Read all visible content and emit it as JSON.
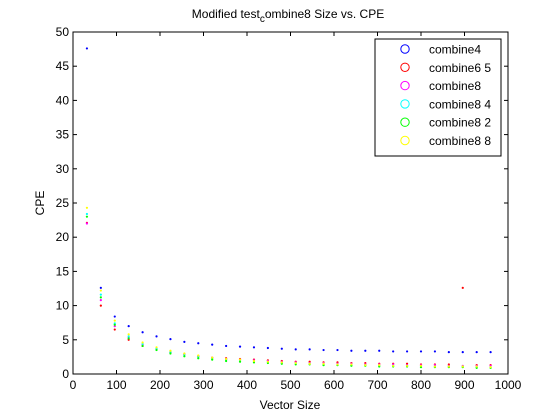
{
  "chart_data": {
    "type": "scatter",
    "title": {
      "prefix": "Modified test",
      "subscript": "c",
      "suffix": "ombine8 Size vs. CPE"
    },
    "xlabel": "Vector Size",
    "ylabel": "CPE",
    "xlim": [
      0,
      1000
    ],
    "ylim": [
      0,
      50
    ],
    "xticks": [
      "0",
      "100",
      "200",
      "300",
      "400",
      "500",
      "600",
      "700",
      "800",
      "900",
      "1000"
    ],
    "yticks": [
      "0",
      "5",
      "10",
      "15",
      "20",
      "25",
      "30",
      "35",
      "40",
      "45",
      "50"
    ],
    "grid": false,
    "legend_position": "top-right",
    "x": [
      32,
      64,
      96,
      128,
      160,
      192,
      224,
      256,
      288,
      320,
      352,
      384,
      416,
      448,
      480,
      512,
      544,
      576,
      608,
      640,
      672,
      704,
      736,
      768,
      800,
      832,
      864,
      896,
      928,
      960
    ],
    "series": [
      {
        "name": "combine4",
        "color": "#0000ff",
        "values": [
          47.6,
          12.6,
          8.4,
          7.0,
          6.1,
          5.5,
          5.1,
          4.7,
          4.5,
          4.3,
          4.1,
          4.0,
          3.9,
          3.8,
          3.7,
          3.6,
          3.6,
          3.5,
          3.5,
          3.4,
          3.4,
          3.4,
          3.3,
          3.3,
          3.3,
          3.3,
          3.2,
          3.2,
          3.2,
          3.2
        ]
      },
      {
        "name": "combine6 5",
        "color": "#ff0000",
        "values": [
          22.1,
          10.0,
          6.5,
          5.0,
          4.1,
          3.6,
          3.2,
          2.9,
          2.6,
          2.4,
          2.3,
          2.2,
          2.1,
          2.0,
          1.9,
          1.8,
          1.8,
          1.7,
          1.7,
          1.6,
          1.6,
          1.5,
          1.5,
          1.5,
          1.4,
          1.4,
          1.4,
          12.6,
          1.3,
          1.3
        ]
      },
      {
        "name": "combine8",
        "color": "#ff00ff",
        "values": [
          22.0,
          10.8,
          7.0,
          5.3,
          4.3,
          3.7,
          3.2,
          2.9,
          2.6,
          2.4,
          2.2,
          2.1,
          2.0,
          1.9,
          1.8,
          1.7,
          1.6,
          1.6,
          1.5,
          1.5,
          1.4,
          1.4,
          1.4,
          1.3,
          1.3,
          1.3,
          1.2,
          1.2,
          1.2,
          1.2
        ]
      },
      {
        "name": "combine8 4",
        "color": "#00ffff",
        "values": [
          23.4,
          11.6,
          7.4,
          5.5,
          4.4,
          3.7,
          3.2,
          2.8,
          2.5,
          2.3,
          2.1,
          2.0,
          1.8,
          1.7,
          1.6,
          1.6,
          1.5,
          1.4,
          1.4,
          1.3,
          1.3,
          1.2,
          1.2,
          1.2,
          1.1,
          1.1,
          1.1,
          1.1,
          1.0,
          1.0
        ]
      },
      {
        "name": "combine8 2",
        "color": "#00ff00",
        "values": [
          23.0,
          11.2,
          7.2,
          5.2,
          4.1,
          3.5,
          3.0,
          2.6,
          2.3,
          2.1,
          1.9,
          1.8,
          1.7,
          1.6,
          1.5,
          1.4,
          1.4,
          1.3,
          1.3,
          1.2,
          1.2,
          1.1,
          1.1,
          1.1,
          1.0,
          1.0,
          1.0,
          1.0,
          0.9,
          0.9
        ]
      },
      {
        "name": "combine8 8",
        "color": "#ffff00",
        "values": [
          24.3,
          12.2,
          7.8,
          5.8,
          4.6,
          3.9,
          3.4,
          3.0,
          2.7,
          2.4,
          2.2,
          2.1,
          1.9,
          1.8,
          1.7,
          1.6,
          1.5,
          1.5,
          1.4,
          1.4,
          1.3,
          1.3,
          1.2,
          1.2,
          1.2,
          1.1,
          1.1,
          1.1,
          1.1,
          1.0
        ]
      }
    ]
  }
}
